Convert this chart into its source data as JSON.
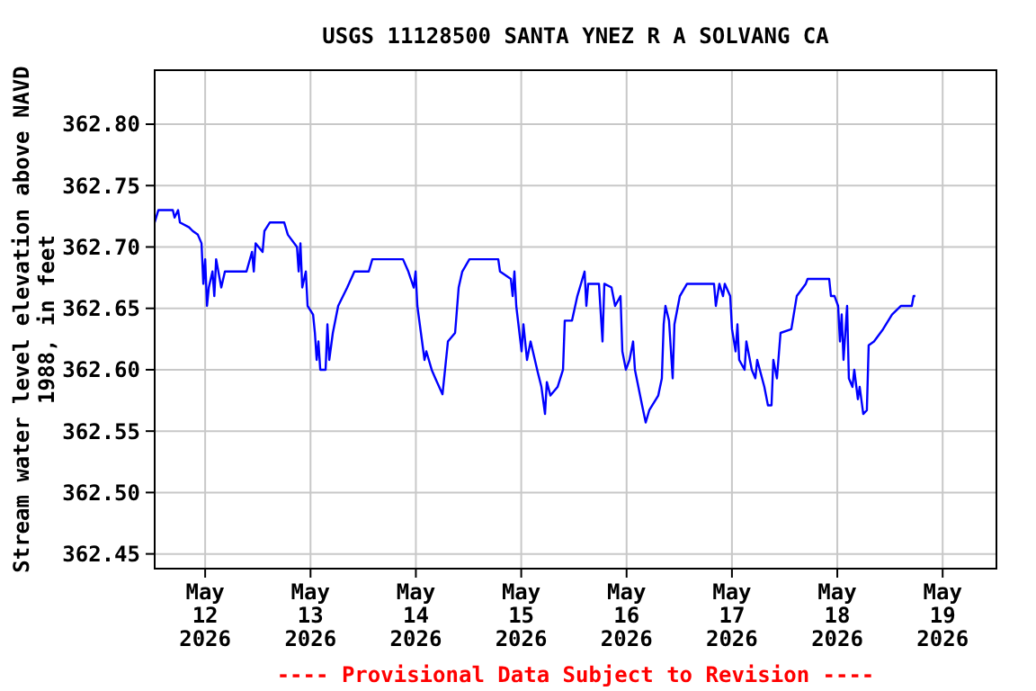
{
  "chart_data": {
    "type": "line",
    "title": "USGS 11128500 SANTA YNEZ R A SOLVANG CA",
    "ylabel": "Stream water level elevation above NAVD 1988, in feet",
    "annotations": [
      "---- Provisional Data Subject to Revision ----"
    ],
    "xlim": [
      "2026-05-11T12:30",
      "2026-05-19T12:15"
    ],
    "xticks": [
      {
        "value": "2026-05-12",
        "label": "May 12 2026"
      },
      {
        "value": "2026-05-13",
        "label": "May 13 2026"
      },
      {
        "value": "2026-05-14",
        "label": "May 14 2026"
      },
      {
        "value": "2026-05-15",
        "label": "May 15 2026"
      },
      {
        "value": "2026-05-16",
        "label": "May 16 2026"
      },
      {
        "value": "2026-05-17",
        "label": "May 17 2026"
      },
      {
        "value": "2026-05-18",
        "label": "May 18 2026"
      },
      {
        "value": "2026-05-19",
        "label": "May 19 2026"
      }
    ],
    "ylim": [
      362.438,
      362.844
    ],
    "yticks": [
      {
        "value": 362.45,
        "label": "362.45"
      },
      {
        "value": 362.5,
        "label": "362.50"
      },
      {
        "value": 362.55,
        "label": "362.55"
      },
      {
        "value": 362.6,
        "label": "362.60"
      },
      {
        "value": 362.65,
        "label": "362.65"
      },
      {
        "value": 362.7,
        "label": "362.70"
      },
      {
        "value": 362.75,
        "label": "362.75"
      },
      {
        "value": 362.8,
        "label": "362.80"
      }
    ],
    "grid": true,
    "series": [
      {
        "color": "#0000ff",
        "x": [
          "2026-05-11T12:30",
          "2026-05-11T13:20",
          "2026-05-11T16:38",
          "2026-05-11T17:02",
          "2026-05-11T17:50",
          "2026-05-11T18:15",
          "2026-05-11T20:20",
          "2026-05-11T21:10",
          "2026-05-11T22:20",
          "2026-05-11T23:10",
          "2026-05-11T23:35",
          "2026-05-12T00:00",
          "2026-05-12T00:25",
          "2026-05-12T00:50",
          "2026-05-12T01:40",
          "2026-05-12T02:05",
          "2026-05-12T02:30",
          "2026-05-12T03:40",
          "2026-05-12T04:30",
          "2026-05-12T09:25",
          "2026-05-12T10:40",
          "2026-05-12T11:05",
          "2026-05-12T11:30",
          "2026-05-12T13:05",
          "2026-05-12T13:30",
          "2026-05-12T14:45",
          "2026-05-12T18:00",
          "2026-05-12T18:50",
          "2026-05-12T20:55",
          "2026-05-12T21:18",
          "2026-05-12T21:42",
          "2026-05-12T22:07",
          "2026-05-12T22:56",
          "2026-05-12T23:20",
          "2026-05-13T00:35",
          "2026-05-13T01:00",
          "2026-05-13T01:24",
          "2026-05-13T01:48",
          "2026-05-13T02:13",
          "2026-05-13T03:26",
          "2026-05-13T03:51",
          "2026-05-13T04:16",
          "2026-05-13T05:05",
          "2026-05-13T06:18",
          "2026-05-13T08:22",
          "2026-05-13T10:00",
          "2026-05-13T13:16",
          "2026-05-13T14:05",
          "2026-05-13T21:04",
          "2026-05-13T22:17",
          "2026-05-13T23:31",
          "2026-05-13T23:56",
          "2026-05-14T00:20",
          "2026-05-14T01:09",
          "2026-05-14T01:58",
          "2026-05-14T02:23",
          "2026-05-14T03:36",
          "2026-05-14T04:26",
          "2026-05-14T06:04",
          "2026-05-14T07:18",
          "2026-05-14T08:56",
          "2026-05-14T09:45",
          "2026-05-14T10:34",
          "2026-05-14T12:12",
          "2026-05-14T18:46",
          "2026-05-14T19:10",
          "2026-05-14T21:38",
          "2026-05-14T22:03",
          "2026-05-14T22:27",
          "2026-05-14T22:52",
          "2026-05-15T00:05",
          "2026-05-15T00:30",
          "2026-05-15T01:19",
          "2026-05-15T02:08",
          "2026-05-15T03:46",
          "2026-05-15T04:36",
          "2026-05-15T05:25",
          "2026-05-15T05:50",
          "2026-05-15T06:39",
          "2026-05-15T08:17",
          "2026-05-15T09:31",
          "2026-05-15T09:55",
          "2026-05-15T11:34",
          "2026-05-15T12:47",
          "2026-05-15T14:26",
          "2026-05-15T14:50",
          "2026-05-15T15:15",
          "2026-05-15T17:42",
          "2026-05-15T18:31",
          "2026-05-15T18:56",
          "2026-05-15T20:34",
          "2026-05-15T21:23",
          "2026-05-15T22:37",
          "2026-05-15T23:02",
          "2026-05-15T23:51",
          "2026-05-16T00:40",
          "2026-05-16T01:29",
          "2026-05-16T01:54",
          "2026-05-16T03:32",
          "2026-05-16T04:21",
          "2026-05-16T05:10",
          "2026-05-16T07:13",
          "2026-05-16T08:02",
          "2026-05-16T08:27",
          "2026-05-16T08:51",
          "2026-05-16T09:40",
          "2026-05-16T10:30",
          "2026-05-16T10:54",
          "2026-05-16T12:08",
          "2026-05-16T13:46",
          "2026-05-16T19:55",
          "2026-05-16T20:20",
          "2026-05-16T21:08",
          "2026-05-16T21:58",
          "2026-05-16T22:22",
          "2026-05-16T23:36",
          "2026-05-17T00:01",
          "2026-05-17T00:50",
          "2026-05-17T01:15",
          "2026-05-17T01:39",
          "2026-05-17T02:53",
          "2026-05-17T03:17",
          "2026-05-17T04:31",
          "2026-05-17T05:20",
          "2026-05-17T05:45",
          "2026-05-17T07:23",
          "2026-05-17T08:12",
          "2026-05-17T09:01",
          "2026-05-17T09:26",
          "2026-05-17T10:15",
          "2026-05-17T11:04",
          "2026-05-17T13:32",
          "2026-05-17T14:46",
          "2026-05-17T16:49",
          "2026-05-17T17:14",
          "2026-05-17T22:09",
          "2026-05-17T22:33",
          "2026-05-17T23:22",
          "2026-05-18T00:11",
          "2026-05-18T00:36",
          "2026-05-18T01:00",
          "2026-05-18T01:25",
          "2026-05-18T02:14",
          "2026-05-18T02:38",
          "2026-05-18T03:27",
          "2026-05-18T03:52",
          "2026-05-18T04:41",
          "2026-05-18T05:06",
          "2026-05-18T05:55",
          "2026-05-18T06:44",
          "2026-05-18T07:09",
          "2026-05-18T08:22",
          "2026-05-18T10:25",
          "2026-05-18T12:28",
          "2026-05-18T14:31",
          "2026-05-18T16:58",
          "2026-05-18T17:23",
          "2026-05-18T17:47"
        ],
        "values": [
          362.72,
          362.73,
          362.73,
          362.724,
          362.73,
          362.72,
          362.716,
          362.713,
          362.71,
          362.703,
          362.67,
          362.69,
          362.652,
          362.667,
          362.68,
          362.66,
          362.69,
          362.667,
          362.68,
          362.68,
          362.696,
          362.68,
          362.703,
          362.696,
          362.713,
          362.72,
          362.72,
          362.71,
          362.7,
          362.68,
          362.703,
          362.667,
          362.68,
          362.652,
          362.645,
          362.63,
          362.608,
          362.623,
          362.6,
          362.6,
          362.637,
          362.608,
          362.63,
          362.652,
          362.667,
          362.68,
          362.68,
          362.69,
          362.69,
          362.68,
          362.667,
          362.68,
          362.652,
          362.63,
          362.608,
          362.615,
          362.6,
          362.593,
          362.58,
          362.623,
          362.63,
          362.667,
          362.68,
          362.69,
          362.69,
          362.68,
          362.674,
          362.66,
          362.68,
          362.652,
          362.615,
          362.637,
          362.608,
          362.623,
          362.598,
          362.586,
          362.564,
          362.59,
          362.579,
          362.586,
          362.6,
          362.64,
          362.64,
          362.66,
          362.68,
          362.652,
          362.67,
          362.67,
          362.623,
          362.67,
          362.667,
          362.652,
          362.66,
          362.615,
          362.6,
          362.608,
          362.623,
          362.6,
          362.571,
          362.557,
          362.567,
          362.579,
          362.593,
          362.637,
          362.652,
          362.64,
          362.593,
          362.637,
          362.66,
          362.67,
          362.67,
          362.652,
          362.67,
          362.66,
          362.67,
          362.66,
          362.633,
          362.615,
          362.637,
          362.608,
          362.6,
          362.623,
          362.6,
          362.593,
          362.608,
          362.586,
          362.571,
          362.571,
          362.608,
          362.593,
          362.63,
          362.633,
          362.66,
          362.67,
          362.674,
          362.674,
          362.66,
          362.66,
          362.652,
          362.623,
          362.645,
          362.608,
          362.652,
          362.593,
          362.586,
          362.6,
          362.576,
          362.586,
          362.564,
          362.567,
          362.62,
          362.623,
          362.633,
          362.645,
          362.652,
          362.652,
          362.66,
          362.66
        ]
      }
    ]
  }
}
